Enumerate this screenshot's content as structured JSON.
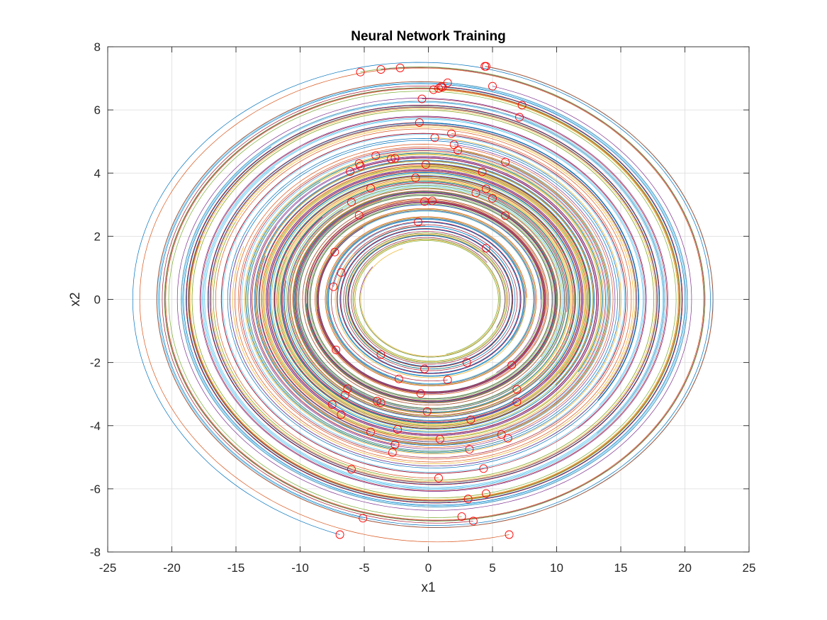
{
  "chart_data": {
    "type": "line",
    "title": "Neural Network Training",
    "xlabel": "x1",
    "ylabel": "x2",
    "xlim": [
      -25,
      25
    ],
    "ylim": [
      -8,
      8
    ],
    "xticks": [
      -25,
      -20,
      -15,
      -10,
      -5,
      0,
      5,
      10,
      15,
      20,
      25
    ],
    "yticks": [
      -8,
      -6,
      -4,
      -2,
      0,
      2,
      4,
      6,
      8
    ],
    "xtick_labels": [
      "-25",
      "-20",
      "-15",
      "-10",
      "-5",
      "0",
      "5",
      "10",
      "15",
      "20",
      "25"
    ],
    "ytick_labels": [
      "-8",
      "-6",
      "-4",
      "-2",
      "0",
      "2",
      "4",
      "6",
      "8"
    ],
    "grid": true,
    "legend": "none",
    "series_colors": [
      "#0072BD",
      "#D95319",
      "#EDB120",
      "#7E2F8E",
      "#77AC30",
      "#4DBEEE",
      "#A2142F"
    ],
    "marker": {
      "shape": "circle",
      "color": "#FF0000",
      "filled": false
    },
    "trajectory_dynamics": {
      "description": "damped oscillator spiral toward origin",
      "omega_x_over_y": 3.0,
      "damping": 0.03,
      "steps": 420,
      "dt": 0.035
    },
    "initial_points": [
      [
        4.4,
        7.38
      ],
      [
        4.5,
        7.38
      ],
      [
        -2.2,
        7.33
      ],
      [
        -3.7,
        7.28
      ],
      [
        -5.3,
        7.2
      ],
      [
        1.5,
        6.86
      ],
      [
        1.0,
        6.74
      ],
      [
        1.1,
        6.72
      ],
      [
        0.8,
        6.68
      ],
      [
        0.4,
        6.64
      ],
      [
        5.0,
        6.75
      ],
      [
        7.3,
        6.15
      ],
      [
        7.1,
        5.77
      ],
      [
        -0.5,
        6.35
      ],
      [
        -0.7,
        5.6
      ],
      [
        1.8,
        5.25
      ],
      [
        0.5,
        5.12
      ],
      [
        2.0,
        4.9
      ],
      [
        2.3,
        4.72
      ],
      [
        6.0,
        4.35
      ],
      [
        -4.1,
        4.55
      ],
      [
        -2.6,
        4.47
      ],
      [
        -2.9,
        4.45
      ],
      [
        -5.4,
        4.3
      ],
      [
        -5.3,
        4.22
      ],
      [
        -0.2,
        4.27
      ],
      [
        4.2,
        4.04
      ],
      [
        -6.1,
        4.05
      ],
      [
        -1.0,
        3.85
      ],
      [
        4.5,
        3.5
      ],
      [
        -4.5,
        3.52
      ],
      [
        3.7,
        3.37
      ],
      [
        5.0,
        3.2
      ],
      [
        0.3,
        3.12
      ],
      [
        -0.3,
        3.1
      ],
      [
        -6.0,
        3.08
      ],
      [
        -5.4,
        2.66
      ],
      [
        6.0,
        2.65
      ],
      [
        -0.8,
        2.45
      ],
      [
        4.5,
        1.62
      ],
      [
        -7.3,
        1.5
      ],
      [
        -6.8,
        0.85
      ],
      [
        -7.4,
        0.4
      ],
      [
        -7.2,
        -1.6
      ],
      [
        -3.7,
        -1.75
      ],
      [
        -0.3,
        -2.2
      ],
      [
        3.0,
        -2.0
      ],
      [
        6.5,
        -2.08
      ],
      [
        1.5,
        -2.55
      ],
      [
        -2.3,
        -2.52
      ],
      [
        -6.3,
        -2.83
      ],
      [
        -0.6,
        -2.98
      ],
      [
        6.9,
        -2.85
      ],
      [
        -6.5,
        -3.03
      ],
      [
        -4.0,
        -3.22
      ],
      [
        -3.7,
        -3.27
      ],
      [
        6.9,
        -3.25
      ],
      [
        -7.5,
        -3.33
      ],
      [
        -6.8,
        -3.65
      ],
      [
        -0.1,
        -3.55
      ],
      [
        3.3,
        -3.81
      ],
      [
        -2.4,
        -4.12
      ],
      [
        -4.5,
        -4.2
      ],
      [
        5.7,
        -4.28
      ],
      [
        0.9,
        -4.43
      ],
      [
        6.2,
        -4.4
      ],
      [
        -2.6,
        -4.6
      ],
      [
        3.2,
        -4.75
      ],
      [
        -2.8,
        -4.85
      ],
      [
        4.3,
        -5.36
      ],
      [
        -6.0,
        -5.38
      ],
      [
        0.8,
        -5.66
      ],
      [
        4.5,
        -6.15
      ],
      [
        3.1,
        -6.32
      ],
      [
        2.6,
        -6.88
      ],
      [
        -5.1,
        -6.93
      ],
      [
        3.5,
        -7.02
      ],
      [
        -6.9,
        -7.45
      ],
      [
        6.3,
        -7.45
      ]
    ]
  }
}
